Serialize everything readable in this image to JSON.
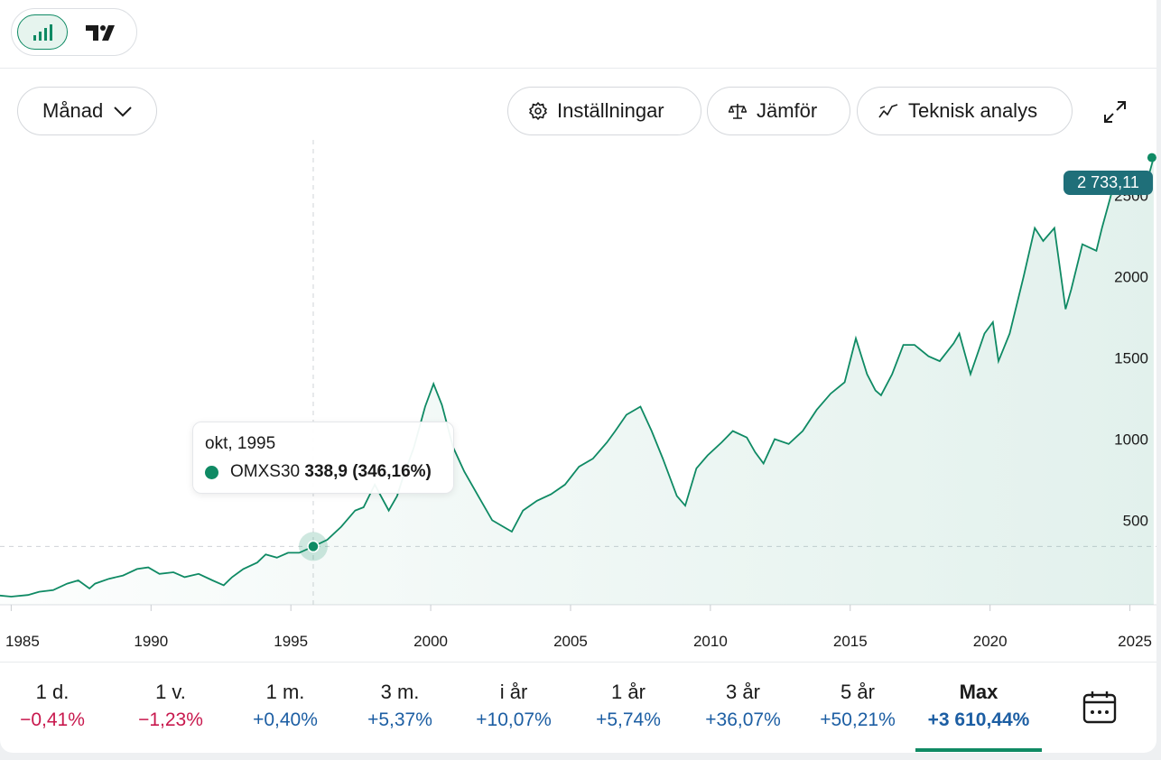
{
  "toolbar": {
    "chart_icon": "bar-chart-icon",
    "tv_icon": "tradingview-logo-icon",
    "period_label": "Månad",
    "settings_label": "Inställningar",
    "compare_label": "Jämför",
    "analysis_label": "Teknisk analys",
    "expand_icon": "expand-icon"
  },
  "tooltip": {
    "date": "okt, 1995",
    "series": "OMXS30",
    "value": "338,9",
    "change": "(346,16%)"
  },
  "last_value_badge": "2 733,11",
  "periods": [
    {
      "label": "1 d.",
      "value": "−0,41%",
      "tone": "neg"
    },
    {
      "label": "1 v.",
      "value": "−1,23%",
      "tone": "neg"
    },
    {
      "label": "1 m.",
      "value": "+0,40%",
      "tone": "pos"
    },
    {
      "label": "3 m.",
      "value": "+5,37%",
      "tone": "pos"
    },
    {
      "label": "i år",
      "value": "+10,07%",
      "tone": "pos"
    },
    {
      "label": "1 år",
      "value": "+5,74%",
      "tone": "pos"
    },
    {
      "label": "3 år",
      "value": "+36,07%",
      "tone": "pos"
    },
    {
      "label": "5 år",
      "value": "+50,21%",
      "tone": "pos"
    },
    {
      "label": "Max",
      "value": "+3 610,44%",
      "tone": "pos",
      "active": true
    }
  ],
  "calendar_icon": "calendar-icon",
  "colors": {
    "line": "#0f8a64",
    "badge": "#1f6f79",
    "negative": "#c8184d",
    "positive": "#1c5ea3"
  },
  "chart_data": {
    "type": "area",
    "series": [
      {
        "name": "OMXS30"
      }
    ],
    "x": [
      1984.4,
      1985.0,
      1985.6,
      1986.0,
      1986.5,
      1987.0,
      1987.4,
      1987.8,
      1988.0,
      1988.5,
      1989.0,
      1989.5,
      1989.9,
      1990.3,
      1990.8,
      1991.2,
      1991.7,
      1992.2,
      1992.6,
      1992.9,
      1993.3,
      1993.8,
      1994.1,
      1994.5,
      1994.9,
      1995.3,
      1995.8,
      1996.3,
      1996.8,
      1997.3,
      1997.6,
      1998.0,
      1998.5,
      1998.8,
      1999.0,
      1999.4,
      1999.8,
      2000.1,
      2000.4,
      2000.8,
      2001.2,
      2001.7,
      2002.2,
      2002.6,
      2002.9,
      2003.3,
      2003.8,
      2004.3,
      2004.8,
      2005.3,
      2005.8,
      2006.3,
      2006.6,
      2007.0,
      2007.5,
      2007.9,
      2008.3,
      2008.8,
      2009.1,
      2009.5,
      2009.9,
      2010.4,
      2010.8,
      2011.3,
      2011.6,
      2011.9,
      2012.3,
      2012.8,
      2013.3,
      2013.8,
      2014.3,
      2014.8,
      2015.2,
      2015.6,
      2015.9,
      2016.1,
      2016.5,
      2016.9,
      2017.3,
      2017.8,
      2018.2,
      2018.7,
      2018.9,
      2019.3,
      2019.8,
      2020.1,
      2020.3,
      2020.7,
      2021.2,
      2021.6,
      2021.9,
      2022.3,
      2022.7,
      2022.9,
      2023.3,
      2023.8,
      2024.0,
      2024.4,
      2024.8,
      2025.1,
      2025.3,
      2025.6,
      2025.85
    ],
    "values": [
      40,
      30,
      40,
      60,
      70,
      110,
      130,
      80,
      110,
      140,
      160,
      200,
      210,
      170,
      180,
      150,
      170,
      130,
      100,
      150,
      200,
      240,
      290,
      270,
      300,
      300,
      338.9,
      380,
      460,
      560,
      580,
      720,
      560,
      650,
      760,
      950,
      1200,
      1340,
      1210,
      950,
      800,
      650,
      500,
      460,
      430,
      560,
      620,
      660,
      720,
      830,
      880,
      980,
      1050,
      1150,
      1200,
      1050,
      880,
      650,
      590,
      820,
      900,
      980,
      1050,
      1010,
      920,
      850,
      1000,
      970,
      1050,
      1180,
      1280,
      1350,
      1620,
      1400,
      1300,
      1270,
      1400,
      1580,
      1580,
      1510,
      1480,
      1590,
      1650,
      1400,
      1650,
      1720,
      1480,
      1650,
      2000,
      2300,
      2220,
      2300,
      1800,
      1920,
      2200,
      2160,
      2300,
      2550,
      2600,
      2550,
      2500,
      2580,
      2733.11
    ],
    "xlabel": "",
    "ylabel": "",
    "xticks": [
      1985,
      1990,
      1995,
      2000,
      2005,
      2010,
      2015,
      2020,
      2025
    ],
    "yticks": [
      500,
      1000,
      1500,
      2000,
      2500
    ],
    "xlim": [
      1984.6,
      2025.95
    ],
    "ylim": [
      -20,
      2870
    ],
    "reference_y": 338.9,
    "reference_x": 1995.8,
    "grid": false,
    "legend": "none"
  }
}
